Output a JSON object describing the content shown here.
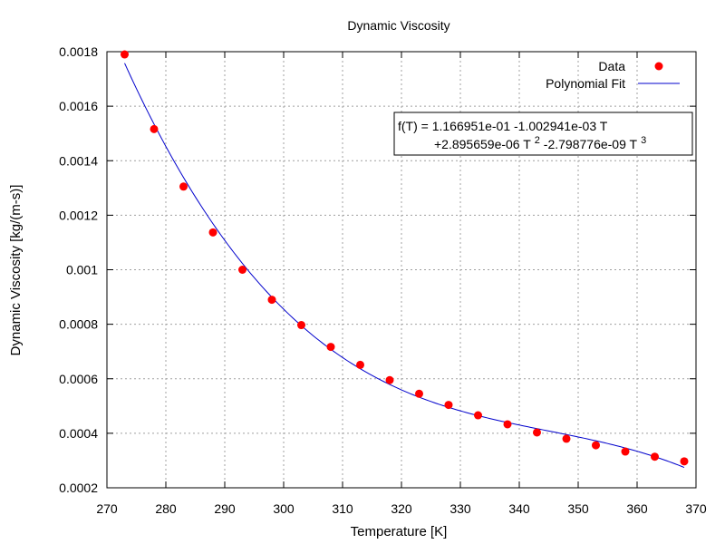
{
  "chart_data": {
    "type": "scatter",
    "title": "Dynamic Viscosity",
    "xlabel": "Temperature [K]",
    "ylabel": "Dynamic Viscosity [kg/(m-s)]",
    "xlim": [
      270,
      370
    ],
    "ylim": [
      0.0002,
      0.0018
    ],
    "x_ticks": [
      "270",
      "280",
      "290",
      "300",
      "310",
      "320",
      "330",
      "340",
      "350",
      "360",
      "370"
    ],
    "y_ticks": [
      "0.0002",
      "0.0004",
      "0.0006",
      "0.0008",
      "0.001",
      "0.0012",
      "0.0014",
      "0.0016",
      "0.0018"
    ],
    "grid": true,
    "legend_position": "top-right",
    "series": [
      {
        "name": "Data",
        "style": "points",
        "color": "#ff0000",
        "x": [
          273,
          278,
          283,
          288,
          293,
          298,
          303,
          308,
          313,
          318,
          323,
          328,
          333,
          338,
          343,
          348,
          353,
          358,
          363,
          368
        ],
        "y": [
          0.00179,
          0.001516,
          0.001305,
          0.001137,
          0.001,
          0.00089,
          0.000797,
          0.000717,
          0.000651,
          0.000595,
          0.000545,
          0.000504,
          0.000466,
          0.000433,
          0.000403,
          0.00038,
          0.000356,
          0.000333,
          0.000314,
          0.000297
        ]
      },
      {
        "name": "Polynomial Fit",
        "style": "line",
        "color": "#0000cc",
        "coefficients": [
          0.1166951,
          -0.001002941,
          2.895659e-06,
          -2.798776e-09
        ],
        "x_range": [
          273,
          368
        ]
      }
    ],
    "annotation": {
      "line1": "f(T) = 1.166951e-01 -1.002941e-03 T",
      "line2a": "+2.895659e-06 T",
      "line2b": "2",
      "line2c": " -2.798776e-09 T",
      "line2d": "3"
    }
  }
}
